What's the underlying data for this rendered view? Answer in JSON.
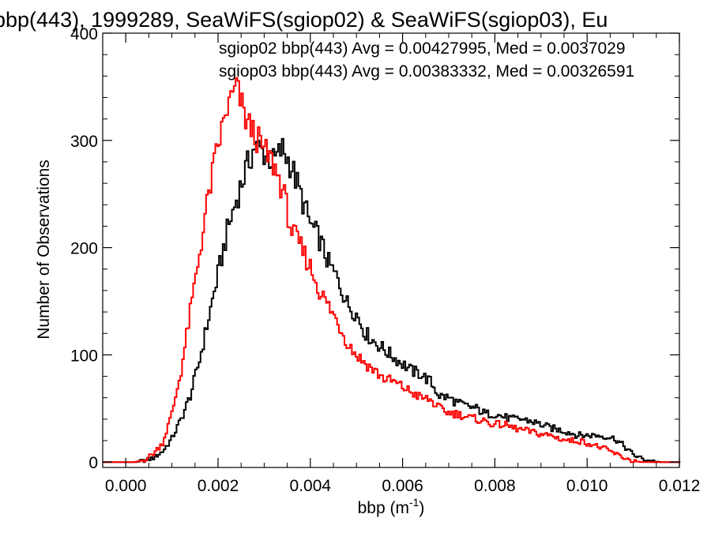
{
  "chart_data": {
    "type": "histogram",
    "title": "bbp(443), 1999289, SeaWiFS(sgiop02) & SeaWiFS(sgiop03), Eu",
    "xlabel": "bbp (m",
    "xlabel_sup": "-1",
    "xlabel_tail": ")",
    "ylabel": "Number of Observations",
    "xlim": [
      -0.0005,
      0.012
    ],
    "ylim": [
      -5,
      400
    ],
    "xticks": [
      0.0,
      0.002,
      0.004,
      0.006,
      0.008,
      0.01,
      0.012
    ],
    "xtick_labels": [
      "0.000",
      "0.002",
      "0.004",
      "0.006",
      "0.008",
      "0.010",
      "0.012"
    ],
    "yticks": [
      0,
      100,
      200,
      300,
      400
    ],
    "ytick_labels": [
      "0",
      "100",
      "200",
      "300",
      "400"
    ],
    "annotations": [
      {
        "text": "sgiop02 bbp(443) Avg = 0.00427995, Med = 0.0037029",
        "color": "#000000"
      },
      {
        "text": "sgiop03 bbp(443) Avg = 0.00383332, Med = 0.00326591",
        "color": "#ff0000"
      }
    ],
    "series": [
      {
        "color": "#000000",
        "points": [
          [
            -0.0005,
            0
          ],
          [
            0.0002,
            0
          ],
          [
            0.0004,
            1
          ],
          [
            0.0006,
            4
          ],
          [
            0.0008,
            10
          ],
          [
            0.001,
            22
          ],
          [
            0.0012,
            40
          ],
          [
            0.0014,
            62
          ],
          [
            0.0016,
            95
          ],
          [
            0.0018,
            135
          ],
          [
            0.002,
            175
          ],
          [
            0.0022,
            215
          ],
          [
            0.0024,
            245
          ],
          [
            0.0026,
            272
          ],
          [
            0.0028,
            295
          ],
          [
            0.003,
            288
          ],
          [
            0.0032,
            280
          ],
          [
            0.0034,
            292
          ],
          [
            0.0036,
            275
          ],
          [
            0.0038,
            248
          ],
          [
            0.004,
            222
          ],
          [
            0.0042,
            208
          ],
          [
            0.0044,
            185
          ],
          [
            0.0046,
            170
          ],
          [
            0.0048,
            148
          ],
          [
            0.005,
            138
          ],
          [
            0.0052,
            120
          ],
          [
            0.0054,
            112
          ],
          [
            0.0056,
            105
          ],
          [
            0.0058,
            98
          ],
          [
            0.006,
            92
          ],
          [
            0.0062,
            85
          ],
          [
            0.0064,
            82
          ],
          [
            0.0066,
            75
          ],
          [
            0.0068,
            62
          ],
          [
            0.007,
            60
          ],
          [
            0.0072,
            55
          ],
          [
            0.0074,
            52
          ],
          [
            0.0076,
            50
          ],
          [
            0.0078,
            45
          ],
          [
            0.008,
            45
          ],
          [
            0.0082,
            42
          ],
          [
            0.0084,
            40
          ],
          [
            0.0086,
            40
          ],
          [
            0.0088,
            38
          ],
          [
            0.009,
            35
          ],
          [
            0.0092,
            32
          ],
          [
            0.0094,
            30
          ],
          [
            0.0096,
            28
          ],
          [
            0.0098,
            25
          ],
          [
            0.01,
            25
          ],
          [
            0.0102,
            25
          ],
          [
            0.0104,
            24
          ],
          [
            0.0106,
            22
          ],
          [
            0.0108,
            15
          ],
          [
            0.011,
            7
          ],
          [
            0.0112,
            3
          ],
          [
            0.0114,
            1
          ],
          [
            0.0116,
            0
          ],
          [
            0.012,
            0
          ]
        ]
      },
      {
        "color": "#ff0000",
        "points": [
          [
            -0.0005,
            0
          ],
          [
            0.0002,
            0
          ],
          [
            0.0004,
            2
          ],
          [
            0.0006,
            8
          ],
          [
            0.0008,
            18
          ],
          [
            0.001,
            45
          ],
          [
            0.0012,
            85
          ],
          [
            0.0014,
            140
          ],
          [
            0.0016,
            195
          ],
          [
            0.0018,
            250
          ],
          [
            0.002,
            295
          ],
          [
            0.0022,
            330
          ],
          [
            0.0024,
            350
          ],
          [
            0.0026,
            320
          ],
          [
            0.0028,
            305
          ],
          [
            0.003,
            290
          ],
          [
            0.0032,
            278
          ],
          [
            0.0034,
            255
          ],
          [
            0.0036,
            215
          ],
          [
            0.0038,
            200
          ],
          [
            0.004,
            182
          ],
          [
            0.0042,
            160
          ],
          [
            0.0044,
            145
          ],
          [
            0.0046,
            130
          ],
          [
            0.0048,
            112
          ],
          [
            0.005,
            100
          ],
          [
            0.0052,
            92
          ],
          [
            0.0054,
            85
          ],
          [
            0.0056,
            78
          ],
          [
            0.0058,
            75
          ],
          [
            0.006,
            70
          ],
          [
            0.0062,
            65
          ],
          [
            0.0064,
            60
          ],
          [
            0.0066,
            58
          ],
          [
            0.0068,
            50
          ],
          [
            0.007,
            46
          ],
          [
            0.0072,
            45
          ],
          [
            0.0074,
            42
          ],
          [
            0.0076,
            40
          ],
          [
            0.0078,
            38
          ],
          [
            0.008,
            35
          ],
          [
            0.0082,
            35
          ],
          [
            0.0084,
            32
          ],
          [
            0.0086,
            30
          ],
          [
            0.0088,
            28
          ],
          [
            0.009,
            26
          ],
          [
            0.0092,
            25
          ],
          [
            0.0094,
            22
          ],
          [
            0.0096,
            20
          ],
          [
            0.0098,
            20
          ],
          [
            0.01,
            18
          ],
          [
            0.0102,
            15
          ],
          [
            0.0104,
            12
          ],
          [
            0.0106,
            8
          ],
          [
            0.0108,
            4
          ],
          [
            0.011,
            1
          ],
          [
            0.0112,
            0
          ],
          [
            0.012,
            0
          ]
        ]
      }
    ]
  }
}
